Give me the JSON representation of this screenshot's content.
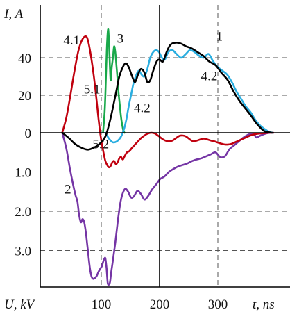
{
  "chart_data": {
    "type": "line",
    "title": "",
    "ylabel_top": "I, A",
    "ylabel_bottom": "U, kV",
    "xlabel": "t, ns",
    "x_unit": "ns",
    "grid": "dashed",
    "xlim": [
      0,
      395
    ],
    "x_ticks": [
      100,
      200,
      300
    ],
    "current_ticks": [
      0,
      20,
      40
    ],
    "current_lim": [
      0,
      57
    ],
    "voltage_ticks": [
      1.0,
      2.0,
      3.0
    ],
    "voltage_lim": [
      0,
      3.9
    ],
    "current_curves": [
      {
        "label": "1",
        "color": "#000000",
        "x": [
          33,
          45,
          55,
          66,
          77,
          87,
          97,
          107,
          113,
          119,
          125,
          131,
          137,
          142,
          147,
          153,
          158,
          163,
          168,
          174,
          179,
          184,
          189,
          195,
          200,
          206,
          212,
          219,
          228,
          237,
          246,
          255,
          265,
          275,
          285,
          296,
          306,
          317,
          327,
          337,
          347,
          357,
          365,
          372,
          379,
          386,
          393
        ],
        "y": [
          0,
          -3,
          -6,
          -8,
          -9,
          -8,
          -6,
          -2,
          4,
          12,
          21,
          30,
          35,
          37,
          35,
          30,
          27,
          31,
          34,
          32,
          27,
          28,
          33,
          38,
          39,
          38,
          43,
          47,
          48,
          47.5,
          46,
          45,
          43,
          41,
          38,
          36,
          32,
          28,
          22,
          17,
          13,
          9,
          5.5,
          3,
          1,
          0.3,
          0
        ]
      },
      {
        "label": "3",
        "color": "#19a84a",
        "x": [
          103,
          106,
          108,
          110,
          112,
          114,
          116,
          118,
          120,
          122,
          124,
          126,
          128,
          130,
          132,
          134,
          136,
          138,
          140
        ],
        "y": [
          0,
          12,
          30,
          48,
          55,
          42,
          28,
          35,
          40,
          46,
          43,
          36,
          28,
          20,
          14,
          8,
          4,
          1,
          0
        ]
      },
      {
        "label": "4.1",
        "color": "#c0000e",
        "x": [
          33,
          40,
          47,
          54,
          61,
          68,
          75,
          80,
          86,
          91,
          95,
          98
        ],
        "y": [
          0,
          8,
          20,
          33,
          44,
          50,
          51,
          45,
          33,
          20,
          8,
          0
        ]
      },
      {
        "label": "4.2",
        "color": "#2aaee0",
        "x": [
          107,
          113,
          119,
          124,
          129,
          134,
          139,
          143,
          147,
          151,
          155,
          159,
          164,
          169,
          174,
          179,
          184,
          189,
          194,
          199,
          204,
          209,
          215,
          222,
          229,
          237,
          245,
          252,
          260,
          268,
          276,
          284,
          292,
          300,
          308,
          316,
          324,
          332,
          340,
          348,
          356,
          364,
          372,
          380,
          388,
          394
        ],
        "y": [
          0,
          -3,
          -5,
          -5,
          -4,
          -2,
          2,
          7,
          14,
          20,
          26,
          30,
          33,
          31,
          30,
          34,
          40,
          43,
          44,
          43,
          40,
          39,
          43,
          44,
          42,
          40,
          42,
          44,
          43,
          41,
          40,
          42,
          38,
          35,
          33,
          31,
          27,
          22,
          18,
          14,
          11,
          7,
          4,
          2,
          0.5,
          0
        ]
      }
    ],
    "voltage_curves": [
      {
        "label": "2",
        "color": "#7535a5",
        "x": [
          33,
          40,
          46,
          52,
          56,
          59,
          62,
          65,
          68,
          71,
          74,
          77,
          80,
          83,
          86,
          89,
          92,
          95,
          98,
          101,
          103,
          105,
          107,
          109,
          111,
          113,
          115,
          117,
          120,
          124,
          128,
          132,
          136,
          141,
          146,
          151,
          156,
          162,
          168,
          174,
          180,
          187,
          194,
          201,
          208,
          216,
          224,
          232,
          240,
          248,
          256,
          264,
          272,
          280,
          288,
          296,
          304,
          312,
          320,
          328,
          336,
          344,
          352,
          358,
          362,
          366,
          372,
          380,
          390,
          395
        ],
        "y": [
          0,
          0.4,
          0.9,
          1.35,
          1.6,
          1.75,
          2.1,
          2.28,
          2.2,
          2.3,
          2.6,
          3.0,
          3.4,
          3.65,
          3.72,
          3.7,
          3.65,
          3.55,
          3.47,
          3.4,
          3.3,
          3.22,
          3.2,
          3.45,
          3.82,
          3.87,
          3.8,
          3.55,
          3.25,
          2.8,
          2.3,
          1.85,
          1.58,
          1.43,
          1.5,
          1.65,
          1.62,
          1.48,
          1.56,
          1.7,
          1.62,
          1.45,
          1.32,
          1.18,
          1.12,
          1.0,
          0.92,
          0.86,
          0.82,
          0.78,
          0.72,
          0.68,
          0.65,
          0.6,
          0.55,
          0.5,
          0.62,
          0.6,
          0.42,
          0.32,
          0.22,
          0.12,
          0.05,
          0.02,
          0.03,
          0.12,
          0.08,
          0.03,
          0.0,
          0.0
        ]
      },
      {
        "label": "5.1",
        "color": "#c0000e",
        "x": [
          98,
          101,
          104,
          107,
          110,
          113,
          116,
          119,
          122,
          125,
          128,
          131,
          134,
          137,
          140,
          144,
          148,
          153,
          158,
          163,
          168,
          174,
          180,
          186,
          192,
          198,
          204,
          210,
          216,
          222,
          228,
          234,
          240,
          246,
          252,
          258,
          264,
          270,
          276,
          282,
          288,
          294,
          300,
          306,
          312,
          318,
          324,
          330,
          336,
          342,
          348,
          354,
          360,
          366,
          372,
          380,
          388,
          395
        ],
        "y": [
          0,
          0.28,
          0.52,
          0.72,
          0.82,
          0.88,
          0.85,
          0.75,
          0.72,
          0.8,
          0.75,
          0.65,
          0.62,
          0.68,
          0.6,
          0.5,
          0.47,
          0.38,
          0.3,
          0.22,
          0.14,
          0.07,
          0.02,
          0.0,
          0.02,
          0.08,
          0.15,
          0.2,
          0.22,
          0.2,
          0.14,
          0.08,
          0.07,
          0.1,
          0.17,
          0.22,
          0.2,
          0.17,
          0.15,
          0.17,
          0.2,
          0.22,
          0.25,
          0.28,
          0.3,
          0.3,
          0.28,
          0.24,
          0.2,
          0.16,
          0.12,
          0.08,
          0.05,
          0.03,
          0.02,
          0.01,
          0.0,
          0.0
        ]
      }
    ],
    "annotations": [
      {
        "text": "1",
        "x": 297,
        "current": 49
      },
      {
        "text": "3",
        "x": 127,
        "current": 48
      },
      {
        "text": "4.1",
        "x": 35,
        "current": 47
      },
      {
        "text": "5.1",
        "x": 70,
        "current": 21
      },
      {
        "text": "4.2",
        "x": 271,
        "current": 28
      },
      {
        "text": "4.2",
        "x": 156,
        "current": 11
      },
      {
        "text": "5.2",
        "x": 85,
        "voltage": 0.4
      },
      {
        "text": "2",
        "x": 37,
        "voltage": 1.55
      }
    ]
  }
}
